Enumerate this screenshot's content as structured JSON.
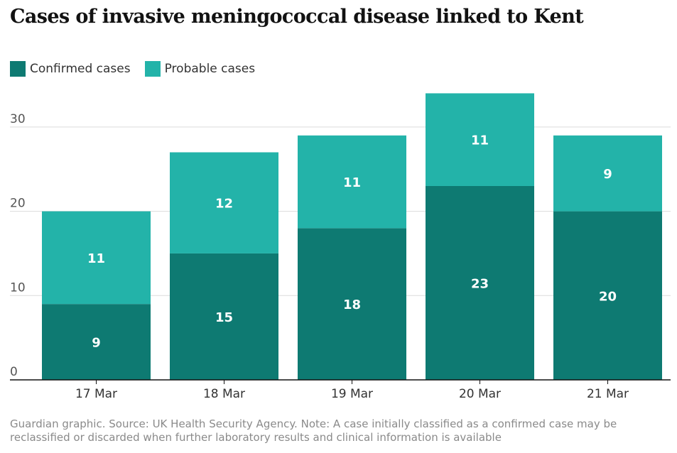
{
  "title": "Cases of invasive meningococcal disease linked to Kent",
  "legend": [
    {
      "label": "Confirmed cases",
      "color": "#0e7a72"
    },
    {
      "label": "Probable cases",
      "color": "#23b3a9"
    }
  ],
  "source": "Guardian graphic. Source: UK Health Security Agency. Note: A case initially classified as a confirmed case may be reclassified or discarded when further laboratory results and clinical information is available",
  "chart_data": {
    "type": "bar",
    "stacked": true,
    "categories": [
      "17 Mar",
      "18 Mar",
      "19 Mar",
      "20 Mar",
      "21 Mar"
    ],
    "series": [
      {
        "name": "Confirmed cases",
        "values": [
          9,
          15,
          18,
          23,
          20
        ],
        "color": "#0e7a72"
      },
      {
        "name": "Probable cases",
        "values": [
          11,
          12,
          11,
          11,
          9
        ],
        "color": "#23b3a9"
      }
    ],
    "yticks": [
      0,
      10,
      20,
      30
    ],
    "ylim": [
      0,
      34
    ]
  }
}
